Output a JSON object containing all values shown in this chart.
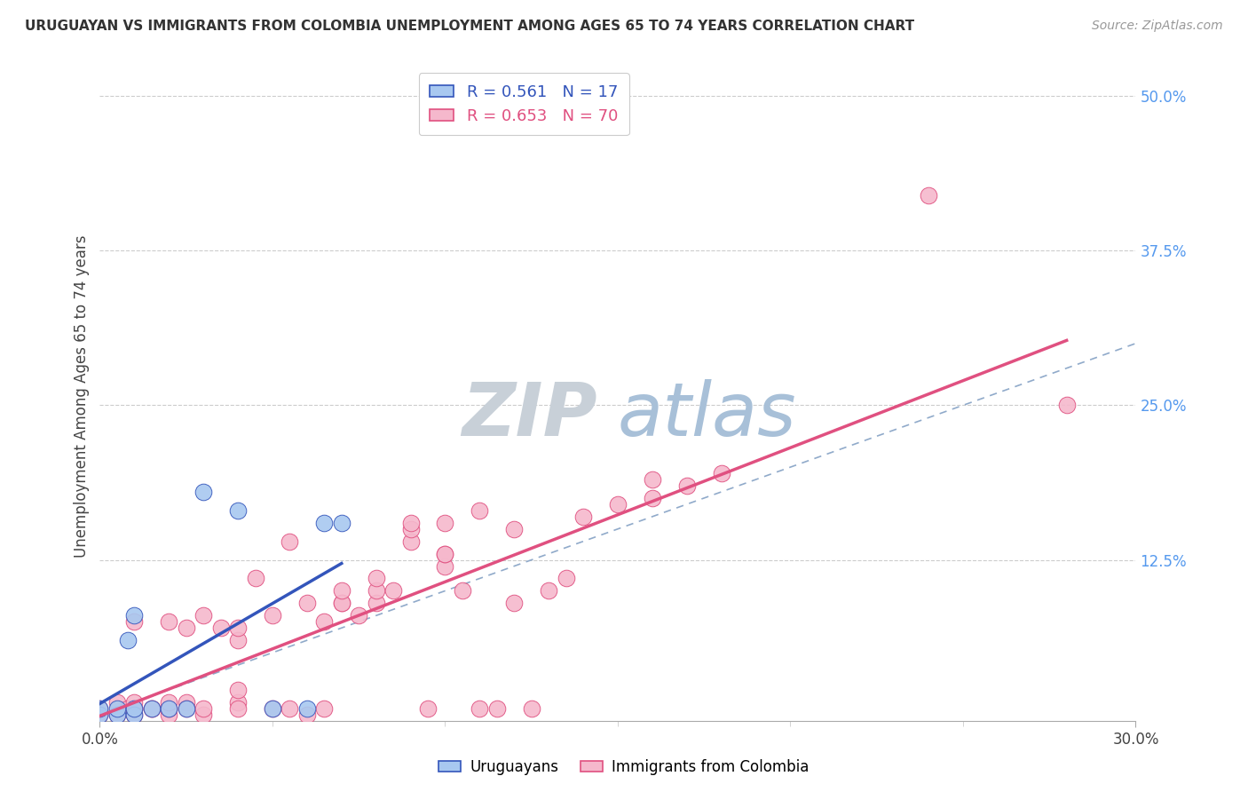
{
  "title": "URUGUAYAN VS IMMIGRANTS FROM COLOMBIA UNEMPLOYMENT AMONG AGES 65 TO 74 YEARS CORRELATION CHART",
  "source": "Source: ZipAtlas.com",
  "ylabel_label": "Unemployment Among Ages 65 to 74 years",
  "xlim": [
    0.0,
    0.3
  ],
  "ylim": [
    -0.005,
    0.52
  ],
  "uruguayan_R": 0.561,
  "uruguayan_N": 17,
  "colombia_R": 0.653,
  "colombia_N": 70,
  "uruguayan_color": "#A8C8F0",
  "colombia_color": "#F5B8CC",
  "uruguayan_line_color": "#3355BB",
  "colombia_line_color": "#E05080",
  "diagonal_color": "#90AACA",
  "watermark_zip_color": "#C8D8E8",
  "watermark_atlas_color": "#B0C8E0",
  "ytick_positions": [
    0.125,
    0.25,
    0.375,
    0.5
  ],
  "uruguayan_x": [
    0.0,
    0.0,
    0.005,
    0.005,
    0.008,
    0.01,
    0.01,
    0.01,
    0.015,
    0.02,
    0.025,
    0.03,
    0.04,
    0.05,
    0.06,
    0.065,
    0.07
  ],
  "uruguayan_y": [
    0.0,
    0.005,
    0.0,
    0.005,
    0.06,
    0.0,
    0.005,
    0.08,
    0.005,
    0.005,
    0.005,
    0.18,
    0.165,
    0.005,
    0.005,
    0.155,
    0.155
  ],
  "colombia_x": [
    0.0,
    0.0,
    0.005,
    0.005,
    0.008,
    0.01,
    0.01,
    0.01,
    0.01,
    0.01,
    0.015,
    0.015,
    0.02,
    0.02,
    0.02,
    0.02,
    0.025,
    0.025,
    0.025,
    0.03,
    0.03,
    0.03,
    0.035,
    0.04,
    0.04,
    0.04,
    0.04,
    0.04,
    0.045,
    0.05,
    0.05,
    0.055,
    0.055,
    0.06,
    0.06,
    0.065,
    0.065,
    0.07,
    0.07,
    0.07,
    0.075,
    0.08,
    0.08,
    0.08,
    0.085,
    0.09,
    0.09,
    0.09,
    0.095,
    0.1,
    0.1,
    0.1,
    0.1,
    0.105,
    0.11,
    0.11,
    0.115,
    0.12,
    0.12,
    0.125,
    0.13,
    0.135,
    0.14,
    0.15,
    0.16,
    0.16,
    0.17,
    0.18,
    0.24,
    0.28
  ],
  "colombia_y": [
    0.0,
    0.005,
    0.0,
    0.01,
    0.005,
    0.0,
    0.005,
    0.005,
    0.01,
    0.075,
    0.005,
    0.005,
    0.0,
    0.005,
    0.01,
    0.075,
    0.01,
    0.07,
    0.005,
    0.0,
    0.005,
    0.08,
    0.07,
    0.01,
    0.02,
    0.06,
    0.07,
    0.005,
    0.11,
    0.005,
    0.08,
    0.005,
    0.14,
    0.0,
    0.09,
    0.075,
    0.005,
    0.09,
    0.09,
    0.1,
    0.08,
    0.09,
    0.1,
    0.11,
    0.1,
    0.14,
    0.15,
    0.155,
    0.005,
    0.12,
    0.13,
    0.13,
    0.155,
    0.1,
    0.165,
    0.005,
    0.005,
    0.09,
    0.15,
    0.005,
    0.1,
    0.11,
    0.16,
    0.17,
    0.175,
    0.19,
    0.185,
    0.195,
    0.42,
    0.25
  ]
}
